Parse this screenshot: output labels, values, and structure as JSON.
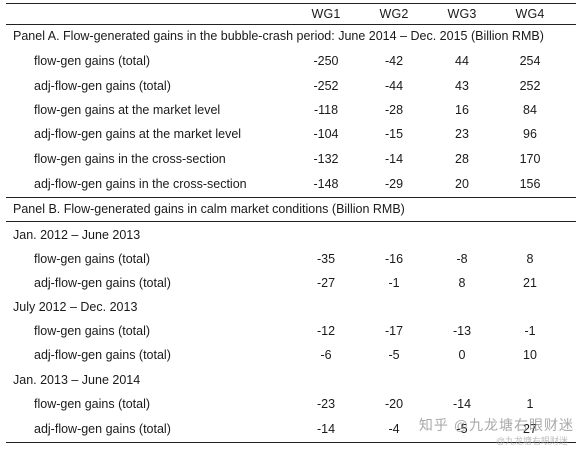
{
  "header": {
    "columns": [
      "WG1",
      "WG2",
      "WG3",
      "WG4"
    ]
  },
  "panel_a": {
    "title": "Panel A. Flow-generated gains in the bubble-crash period: June 2014 – Dec. 2015 (Billion RMB)",
    "rows": [
      {
        "label": "flow-gen gains (total)",
        "values": [
          "-250",
          "-42",
          "44",
          "254"
        ]
      },
      {
        "label": "adj-flow-gen gains (total)",
        "values": [
          "-252",
          "-44",
          "43",
          "252"
        ]
      },
      {
        "label": "flow-gen gains at the market level",
        "values": [
          "-118",
          "-28",
          "16",
          "84"
        ]
      },
      {
        "label": "adj-flow-gen gains at the market level",
        "values": [
          "-104",
          "-15",
          "23",
          "96"
        ]
      },
      {
        "label": "flow-gen gains in the cross-section",
        "values": [
          "-132",
          "-14",
          "28",
          "170"
        ]
      },
      {
        "label": "adj-flow-gen gains in the cross-section",
        "values": [
          "-148",
          "-29",
          "20",
          "156"
        ]
      }
    ]
  },
  "panel_b": {
    "title": "Panel B. Flow-generated gains in calm market conditions (Billion RMB)",
    "periods": [
      {
        "label": "Jan. 2012 – June 2013",
        "rows": [
          {
            "label": "flow-gen gains (total)",
            "values": [
              "-35",
              "-16",
              "-8",
              "8"
            ]
          },
          {
            "label": "adj-flow-gen gains (total)",
            "values": [
              "-27",
              "-1",
              "8",
              "21"
            ]
          }
        ]
      },
      {
        "label": "July 2012 – Dec. 2013",
        "rows": [
          {
            "label": "flow-gen gains (total)",
            "values": [
              "-12",
              "-17",
              "-13",
              "-1"
            ]
          },
          {
            "label": "adj-flow-gen gains (total)",
            "values": [
              "-6",
              "-5",
              "0",
              "10"
            ]
          }
        ]
      },
      {
        "label": "Jan. 2013 – June 2014",
        "rows": [
          {
            "label": "flow-gen gains (total)",
            "values": [
              "-23",
              "-20",
              "-14",
              "1"
            ]
          },
          {
            "label": "adj-flow-gen gains (total)",
            "values": [
              "-14",
              "-4",
              "-5",
              "27"
            ]
          }
        ]
      }
    ]
  },
  "watermark": {
    "text": "知乎 @九龙塘右眼财迷",
    "subtext": "@九龙塘右眼财迷"
  }
}
